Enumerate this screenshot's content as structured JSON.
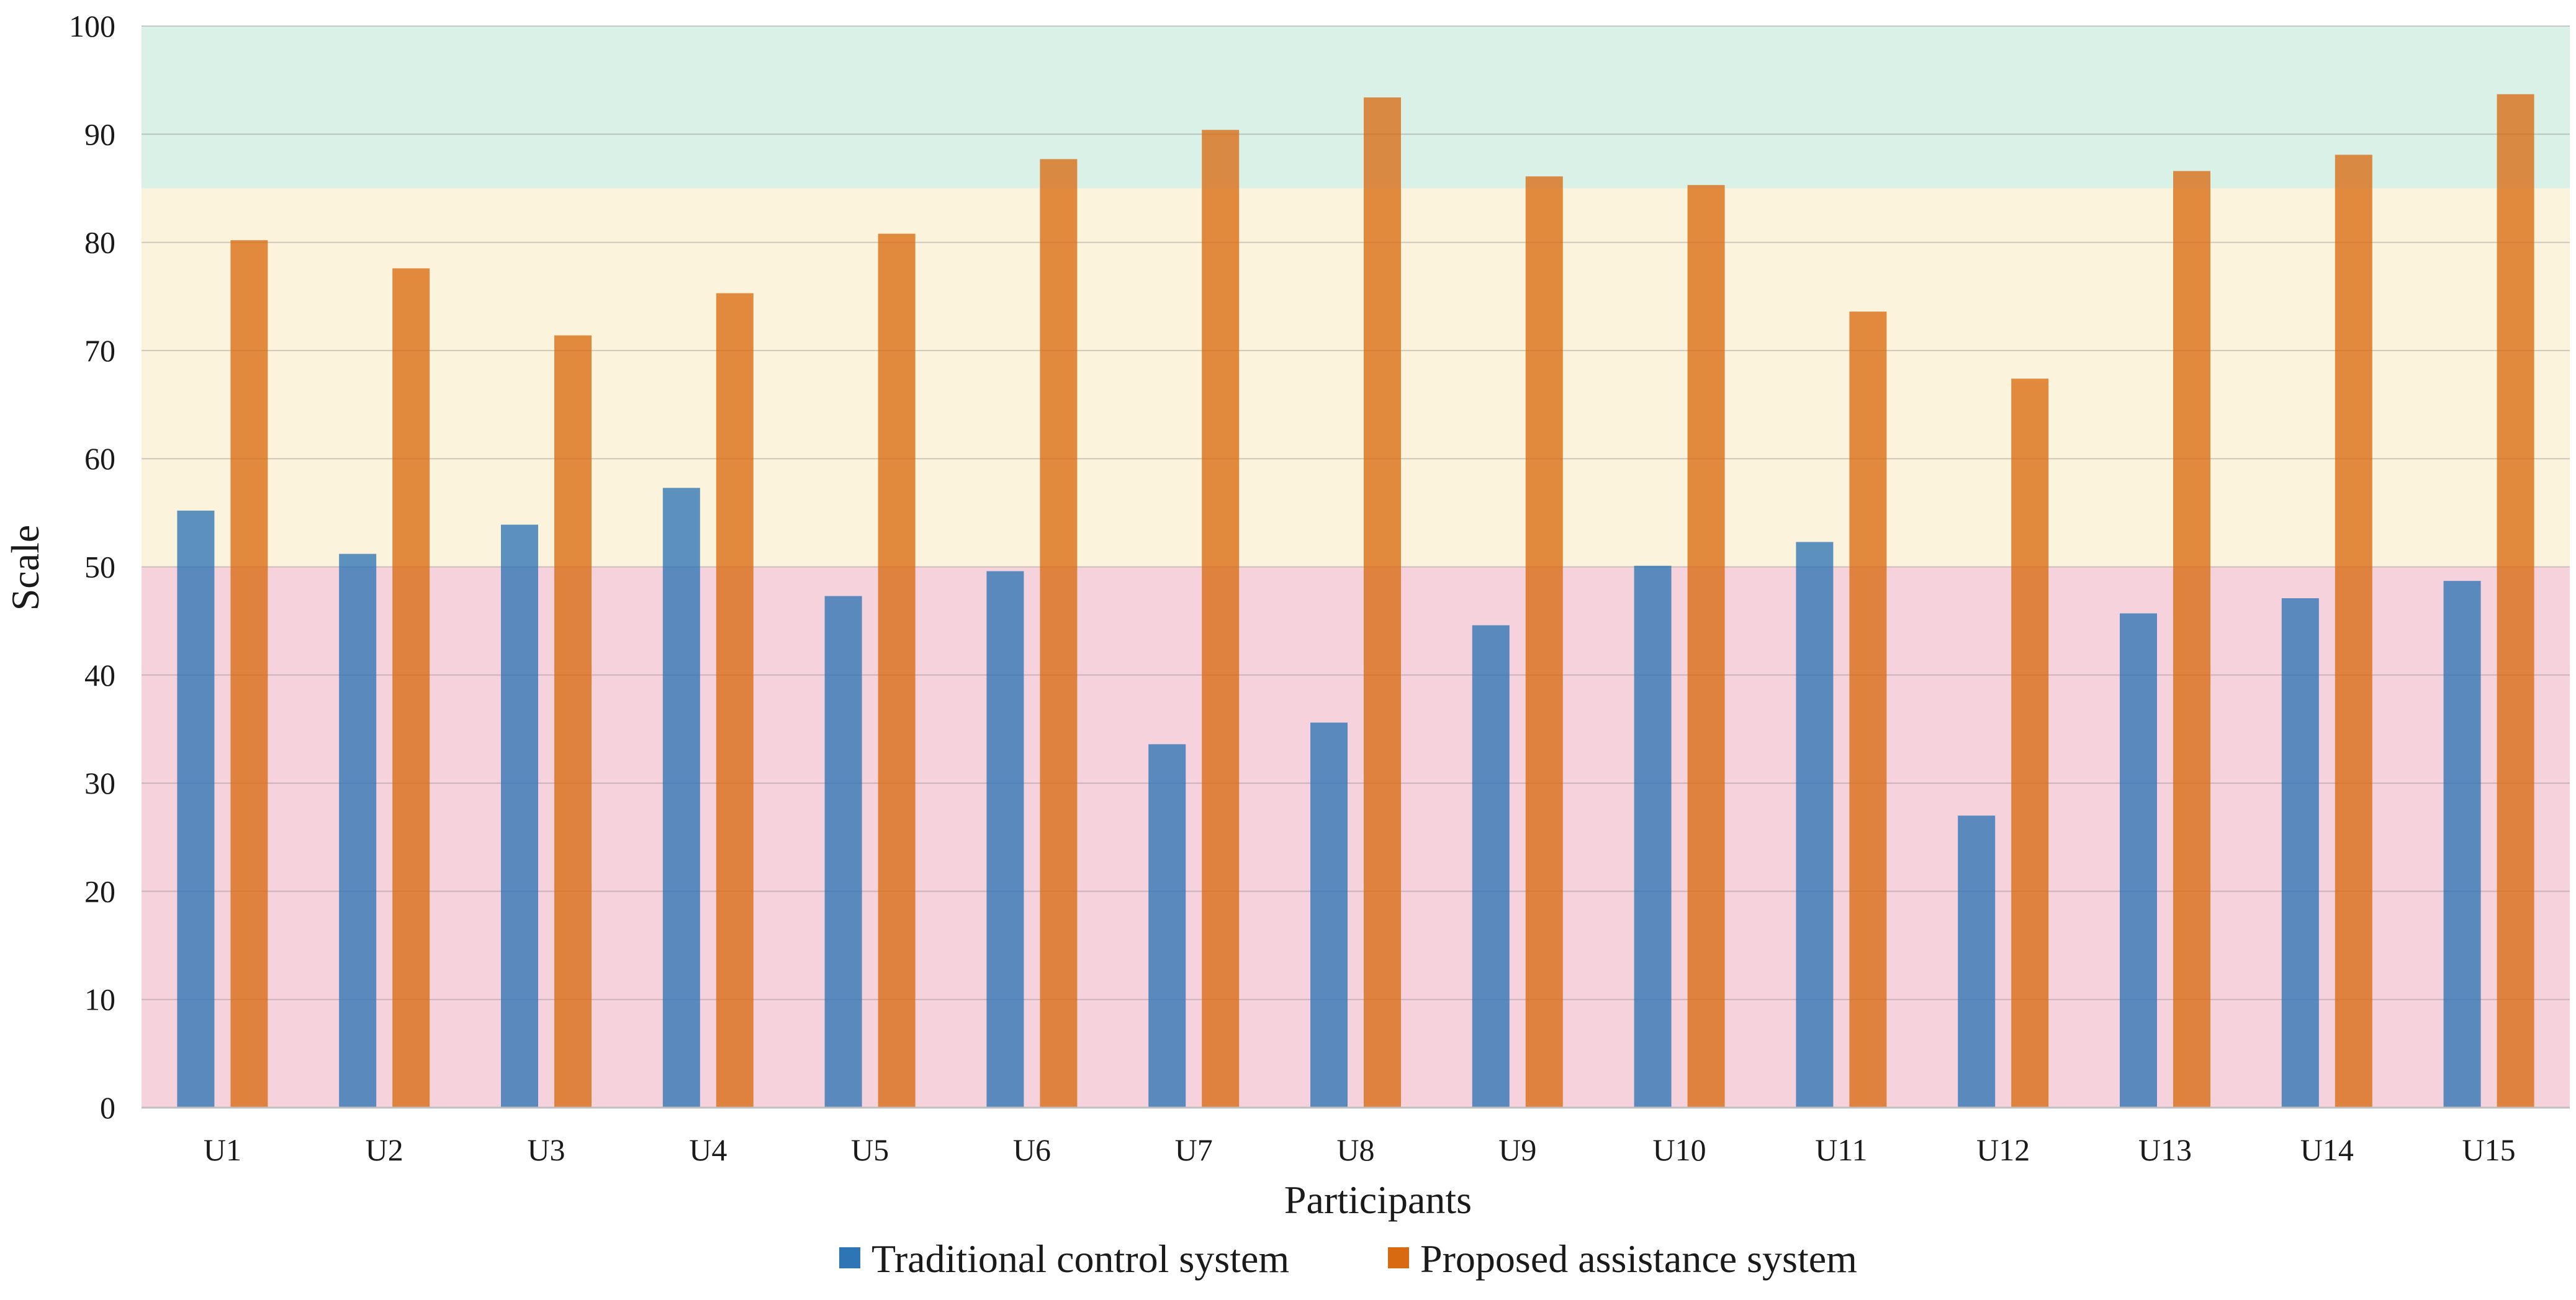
{
  "chart_data": {
    "type": "bar",
    "xlabel": "Participants",
    "ylabel": "Scale",
    "ylim": [
      0,
      100
    ],
    "yticks": [
      0,
      10,
      20,
      30,
      40,
      50,
      60,
      70,
      80,
      90,
      100
    ],
    "categories": [
      "U1",
      "U2",
      "U3",
      "U4",
      "U5",
      "U6",
      "U7",
      "U8",
      "U9",
      "U10",
      "U11",
      "U12",
      "U13",
      "U14",
      "U15"
    ],
    "series": [
      {
        "name": "Traditional control system",
        "color": "#2e75b6",
        "values": [
          55.2,
          51.2,
          53.9,
          57.3,
          47.3,
          49.6,
          33.6,
          35.6,
          44.6,
          50.1,
          52.3,
          27.0,
          45.7,
          47.1,
          48.7
        ]
      },
      {
        "name": "Proposed assistance system",
        "color": "#d86b12",
        "values": [
          80.2,
          77.6,
          71.4,
          75.3,
          80.8,
          87.7,
          90.4,
          93.4,
          86.1,
          85.3,
          73.6,
          67.4,
          86.6,
          88.1,
          93.7
        ]
      }
    ],
    "bands": [
      {
        "from": 0,
        "to": 50,
        "color": "#f6d3dc"
      },
      {
        "from": 50,
        "to": 85,
        "color": "#fcf3dc"
      },
      {
        "from": 85,
        "to": 100,
        "color": "#d9f1e6"
      }
    ]
  }
}
